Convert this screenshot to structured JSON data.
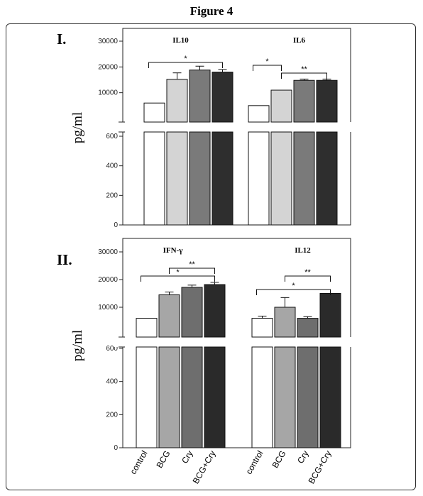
{
  "figure_title": "Figure 4",
  "colors": {
    "control": "#ffffff",
    "BCG": "#d4d4d4",
    "Cry": "#7a7a7a",
    "BCG+Cry": "#2e2e2e",
    "BCG_panel2": "#a6a6a6",
    "Cry_panel2": "#6e6e6e",
    "BCG+Cry_panel2": "#2a2a2a",
    "outline": "#111111"
  },
  "chart_data": [
    {
      "type": "bar",
      "panel_label": "I.",
      "ylabel": "pg/ml",
      "broken_axis": true,
      "yticks_lower": [
        "0",
        "200",
        "400",
        "600"
      ],
      "yticks_upper": [
        "10000",
        "20000",
        "30000"
      ],
      "ylim_lower": [
        0,
        650
      ],
      "ylim_upper": [
        0,
        30000
      ],
      "categories": [
        "control",
        "BCG",
        "Cry",
        "BCG+Cry"
      ],
      "groups": [
        {
          "title": "IL10",
          "values": [
            6000,
            15200,
            18800,
            18000
          ],
          "errors": [
            0,
            2500,
            1500,
            1000
          ],
          "significance": [
            {
              "label": "*",
              "from": "control",
              "to": "BCG+Cry"
            }
          ]
        },
        {
          "title": "IL6",
          "values": [
            5000,
            11000,
            14800,
            14800
          ],
          "errors": [
            0,
            0,
            500,
            500
          ],
          "significance": [
            {
              "label": "*",
              "from": "control",
              "to": "BCG"
            },
            {
              "label": "**",
              "from": "BCG",
              "to": "BCG+Cry"
            }
          ]
        }
      ]
    },
    {
      "type": "bar",
      "panel_label": "II.",
      "ylabel": "pg/ml",
      "broken_axis": true,
      "yticks_lower": [
        "0",
        "200",
        "400",
        "600"
      ],
      "yticks_upper": [
        "10000",
        "20000",
        "30000"
      ],
      "ylim_lower": [
        0,
        650
      ],
      "ylim_upper": [
        0,
        30000
      ],
      "categories": [
        "control",
        "BCG",
        "Cry",
        "BCG+Cry"
      ],
      "groups": [
        {
          "title": "IFN-γ",
          "values": [
            6000,
            14500,
            17200,
            18200
          ],
          "errors": [
            0,
            1000,
            800,
            800
          ],
          "significance": [
            {
              "label": "**",
              "from": "BCG",
              "to": "BCG+Cry"
            },
            {
              "label": "*",
              "from": "control",
              "to": "BCG+Cry"
            }
          ]
        },
        {
          "title": "IL12",
          "values": [
            6000,
            10000,
            6000,
            15000
          ],
          "errors": [
            800,
            3500,
            600,
            0
          ],
          "significance": [
            {
              "label": "**",
              "from": "BCG",
              "to": "BCG+Cry"
            },
            {
              "label": "*",
              "from": "control",
              "to": "BCG+Cry"
            }
          ]
        }
      ]
    }
  ],
  "x_category_labels": [
    "control",
    "BCG",
    "Cry",
    "BCG+Cry"
  ]
}
